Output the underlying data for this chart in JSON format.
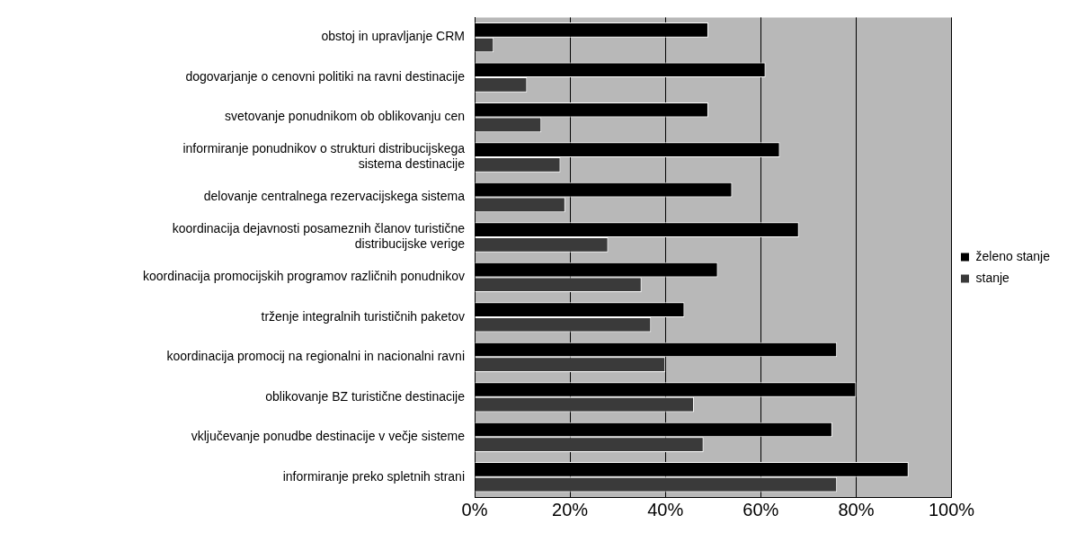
{
  "chart_data": {
    "type": "bar",
    "orientation": "horizontal",
    "categories": [
      "obstoj in upravljanje CRM",
      "dogovarjanje o cenovni politiki na ravni destinacije",
      "svetovanje ponudnikom ob oblikovanju cen",
      "informiranje ponudnikov o strukturi distribucijskega sistema destinacije",
      "delovanje centralnega rezervacijskega sistema",
      "koordinacija dejavnosti posameznih članov turistične distribucijske verige",
      "koordinacija promocijskih programov različnih ponudnikov",
      "trženje integralnih turističnih paketov",
      "koordinacija promocij na regionalni in nacionalni ravni",
      "oblikovanje BZ turistične destinacije",
      "vključevanje ponudbe destinacije v večje sisteme",
      "informiranje preko spletnih strani"
    ],
    "series": [
      {
        "name": "želeno stanje",
        "color": "#000000",
        "values": [
          49,
          61,
          49,
          64,
          54,
          68,
          51,
          44,
          76,
          80,
          75,
          91
        ]
      },
      {
        "name": "stanje",
        "color": "#3a3a3a",
        "values": [
          4,
          11,
          14,
          18,
          19,
          28,
          35,
          37,
          40,
          46,
          48,
          76
        ]
      }
    ],
    "xlim": [
      0,
      100
    ],
    "xticks": [
      {
        "value": 0,
        "label": "0%"
      },
      {
        "value": 20,
        "label": "20%"
      },
      {
        "value": 40,
        "label": "40%"
      },
      {
        "value": 60,
        "label": "60%"
      },
      {
        "value": 80,
        "label": "80%"
      },
      {
        "value": 100,
        "label": "100%"
      }
    ],
    "grid": "x",
    "legend": "right"
  }
}
